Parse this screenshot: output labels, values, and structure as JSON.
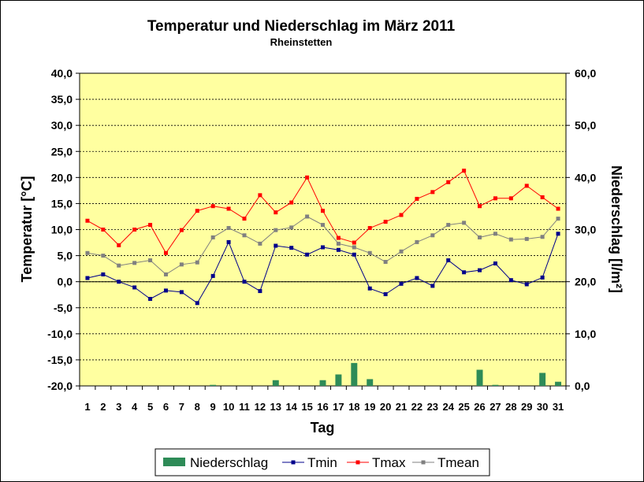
{
  "chart_data": {
    "type": "line",
    "title": "Temperatur und Niederschlag im März 2011",
    "subtitle": "Rheinstetten",
    "xlabel": "Tag",
    "ylabel": "Temperatur [°C]",
    "y2label": "Niederschlag [l/m²]",
    "ylim": [
      -20,
      40
    ],
    "y2lim": [
      0,
      60
    ],
    "yticks": [
      "-20,0",
      "-15,0",
      "-10,0",
      "-5,0",
      "0,0",
      "5,0",
      "10,0",
      "15,0",
      "20,0",
      "25,0",
      "30,0",
      "35,0",
      "40,0"
    ],
    "y2ticks": [
      "0,0",
      "10,0",
      "20,0",
      "30,0",
      "40,0",
      "50,0",
      "60,0"
    ],
    "x": [
      "1",
      "2",
      "3",
      "4",
      "5",
      "6",
      "7",
      "8",
      "9",
      "10",
      "11",
      "12",
      "13",
      "14",
      "15",
      "16",
      "17",
      "18",
      "19",
      "20",
      "21",
      "22",
      "23",
      "24",
      "25",
      "26",
      "27",
      "28",
      "29",
      "30",
      "31"
    ],
    "grid": true,
    "legend": "bottom",
    "series": [
      {
        "name": "Niederschlag",
        "type": "bar",
        "axis": "right",
        "color": "#2e8b57",
        "values": [
          0,
          0,
          0,
          0,
          0,
          0,
          0,
          0,
          0.2,
          0,
          0,
          0,
          1.1,
          0,
          0,
          1.1,
          2.2,
          4.4,
          1.3,
          0,
          0,
          0,
          0,
          0,
          0,
          3.1,
          0.2,
          0,
          0,
          2.5,
          0.8
        ]
      },
      {
        "name": "Tmin",
        "type": "line",
        "axis": "left",
        "color": "#00008b",
        "values": [
          0.7,
          1.4,
          0.0,
          -1.1,
          -3.3,
          -1.7,
          -2.0,
          -4.1,
          1.1,
          7.6,
          0.0,
          -1.8,
          6.9,
          6.5,
          5.2,
          6.6,
          6.1,
          5.2,
          -1.3,
          -2.4,
          -0.4,
          0.7,
          -0.8,
          4.1,
          1.8,
          2.2,
          3.5,
          0.3,
          -0.5,
          0.8,
          9.2
        ]
      },
      {
        "name": "Tmax",
        "type": "line",
        "axis": "left",
        "color": "#ff0000",
        "values": [
          11.7,
          10.0,
          7.0,
          10.0,
          10.9,
          5.5,
          9.9,
          13.6,
          14.5,
          14.0,
          12.1,
          16.6,
          13.3,
          15.2,
          20.0,
          13.6,
          8.4,
          7.5,
          10.3,
          11.5,
          12.8,
          15.9,
          17.2,
          19.1,
          21.3,
          14.5,
          16.0,
          16.0,
          18.4,
          16.2,
          14.0
        ]
      },
      {
        "name": "Tmean",
        "type": "line",
        "axis": "left",
        "color": "#808080",
        "values": [
          5.5,
          5.0,
          3.1,
          3.6,
          4.1,
          1.4,
          3.3,
          3.7,
          8.5,
          10.3,
          8.9,
          7.3,
          9.9,
          10.4,
          12.5,
          10.9,
          7.3,
          6.6,
          5.5,
          3.8,
          5.8,
          7.6,
          8.9,
          10.9,
          11.3,
          8.5,
          9.2,
          8.1,
          8.2,
          8.6,
          12.1
        ]
      }
    ]
  }
}
